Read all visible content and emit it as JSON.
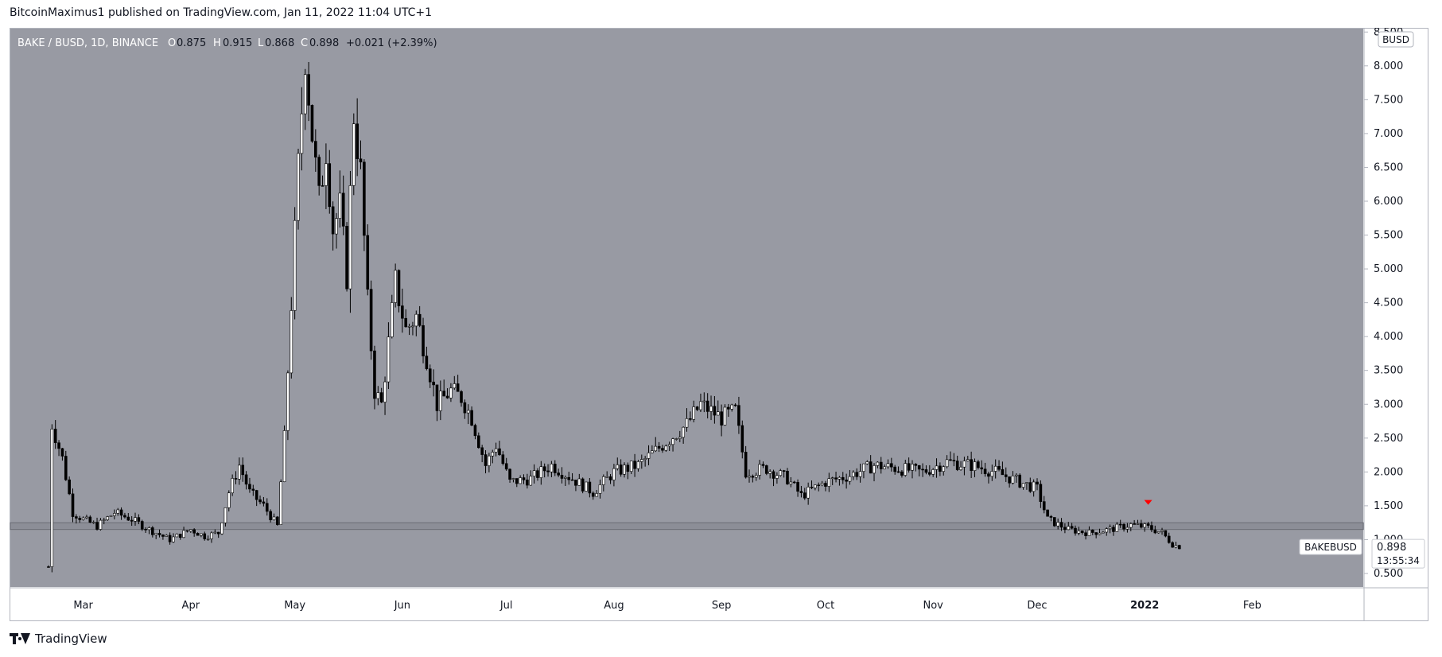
{
  "header": {
    "publisher": "BitcoinMaximus1 published on TradingView.com, Jan 11, 2022 11:04 UTC+1"
  },
  "footer": {
    "brand": "TradingView"
  },
  "chart_data": {
    "type": "candlestick",
    "symbol_line": {
      "symbol": "BAKE / BUSD, 1D, BINANCE",
      "o_label": "O",
      "o_value": "0.875",
      "h_label": "H",
      "h_value": "0.915",
      "l_label": "L",
      "l_value": "0.868",
      "c_label": "C",
      "c_value": "0.898",
      "change": "+0.021 (+2.39%)"
    },
    "currency_badge": "BUSD",
    "ylim": [
      0.3,
      8.55
    ],
    "y_ticks": [
      "8.500",
      "8.000",
      "7.500",
      "7.000",
      "6.500",
      "6.000",
      "5.500",
      "5.000",
      "4.500",
      "4.000",
      "3.500",
      "3.000",
      "2.500",
      "2.000",
      "1.500",
      "1.000",
      "0.500"
    ],
    "x_ticks": [
      {
        "label": "Mar",
        "date": "2021-03-01",
        "bold": false
      },
      {
        "label": "Apr",
        "date": "2021-04-01",
        "bold": false
      },
      {
        "label": "May",
        "date": "2021-05-01",
        "bold": false
      },
      {
        "label": "Jun",
        "date": "2021-06-01",
        "bold": false
      },
      {
        "label": "Jul",
        "date": "2021-07-01",
        "bold": false
      },
      {
        "label": "Aug",
        "date": "2021-08-01",
        "bold": false
      },
      {
        "label": "Sep",
        "date": "2021-09-01",
        "bold": false
      },
      {
        "label": "Oct",
        "date": "2021-10-01",
        "bold": false
      },
      {
        "label": "Nov",
        "date": "2021-11-01",
        "bold": false
      },
      {
        "label": "Dec",
        "date": "2021-12-01",
        "bold": false
      },
      {
        "label": "2022",
        "date": "2022-01-01",
        "bold": true
      },
      {
        "label": "Feb",
        "date": "2022-02-01",
        "bold": false
      }
    ],
    "x_range": [
      "2021-02-08",
      "2022-03-05"
    ],
    "support_zone": [
      1.15,
      1.25
    ],
    "marker": {
      "date": "2022-01-02",
      "price": 1.55,
      "color": "#ff0000"
    },
    "price_label": {
      "symbol": "BAKEBUSD",
      "price": "0.898",
      "countdown": "13:55:34"
    },
    "series": [
      {
        "date": "2021-02-19",
        "close": 0.6
      },
      {
        "date": "2021-02-20",
        "close": 2.7
      },
      {
        "date": "2021-02-23",
        "close": 2.2
      },
      {
        "date": "2021-02-26",
        "close": 1.4
      },
      {
        "date": "2021-03-01",
        "close": 1.3
      },
      {
        "date": "2021-03-05",
        "close": 1.2
      },
      {
        "date": "2021-03-10",
        "close": 1.4
      },
      {
        "date": "2021-03-15",
        "close": 1.3
      },
      {
        "date": "2021-03-20",
        "close": 1.15
      },
      {
        "date": "2021-03-26",
        "close": 1.0
      },
      {
        "date": "2021-04-01",
        "close": 1.15
      },
      {
        "date": "2021-04-05",
        "close": 1.05
      },
      {
        "date": "2021-04-09",
        "close": 1.1
      },
      {
        "date": "2021-04-12",
        "close": 1.7
      },
      {
        "date": "2021-04-15",
        "close": 2.1
      },
      {
        "date": "2021-04-18",
        "close": 1.7
      },
      {
        "date": "2021-04-22",
        "close": 1.5
      },
      {
        "date": "2021-04-26",
        "close": 1.2
      },
      {
        "date": "2021-04-28",
        "close": 2.5
      },
      {
        "date": "2021-04-30",
        "close": 4.5
      },
      {
        "date": "2021-05-02",
        "close": 6.5
      },
      {
        "date": "2021-05-04",
        "close": 8.2
      },
      {
        "date": "2021-05-06",
        "close": 7.0
      },
      {
        "date": "2021-05-08",
        "close": 6.0
      },
      {
        "date": "2021-05-10",
        "close": 6.8
      },
      {
        "date": "2021-05-12",
        "close": 5.6
      },
      {
        "date": "2021-05-14",
        "close": 5.9
      },
      {
        "date": "2021-05-16",
        "close": 4.9
      },
      {
        "date": "2021-05-18",
        "close": 7.3
      },
      {
        "date": "2021-05-20",
        "close": 6.4
      },
      {
        "date": "2021-05-22",
        "close": 4.5
      },
      {
        "date": "2021-05-24",
        "close": 3.2
      },
      {
        "date": "2021-05-26",
        "close": 3.0
      },
      {
        "date": "2021-05-28",
        "close": 3.9
      },
      {
        "date": "2021-05-30",
        "close": 4.8
      },
      {
        "date": "2021-06-02",
        "close": 4.1
      },
      {
        "date": "2021-06-05",
        "close": 4.3
      },
      {
        "date": "2021-06-08",
        "close": 3.7
      },
      {
        "date": "2021-06-11",
        "close": 3.0
      },
      {
        "date": "2021-06-15",
        "close": 3.2
      },
      {
        "date": "2021-06-18",
        "close": 3.1
      },
      {
        "date": "2021-06-21",
        "close": 2.8
      },
      {
        "date": "2021-06-25",
        "close": 2.1
      },
      {
        "date": "2021-06-28",
        "close": 2.4
      },
      {
        "date": "2021-07-02",
        "close": 1.85
      },
      {
        "date": "2021-07-08",
        "close": 1.9
      },
      {
        "date": "2021-07-14",
        "close": 2.1
      },
      {
        "date": "2021-07-20",
        "close": 1.9
      },
      {
        "date": "2021-07-26",
        "close": 1.7
      },
      {
        "date": "2021-08-01",
        "close": 2.0
      },
      {
        "date": "2021-08-08",
        "close": 2.1
      },
      {
        "date": "2021-08-15",
        "close": 2.4
      },
      {
        "date": "2021-08-22",
        "close": 2.7
      },
      {
        "date": "2021-08-26",
        "close": 3.0
      },
      {
        "date": "2021-09-01",
        "close": 2.8
      },
      {
        "date": "2021-09-05",
        "close": 2.9
      },
      {
        "date": "2021-09-08",
        "close": 2.0
      },
      {
        "date": "2021-09-14",
        "close": 2.05
      },
      {
        "date": "2021-09-20",
        "close": 1.9
      },
      {
        "date": "2021-09-24",
        "close": 1.65
      },
      {
        "date": "2021-10-01",
        "close": 1.85
      },
      {
        "date": "2021-10-08",
        "close": 1.95
      },
      {
        "date": "2021-10-15",
        "close": 2.1
      },
      {
        "date": "2021-10-22",
        "close": 2.05
      },
      {
        "date": "2021-10-29",
        "close": 2.0
      },
      {
        "date": "2021-11-05",
        "close": 2.15
      },
      {
        "date": "2021-11-12",
        "close": 2.1
      },
      {
        "date": "2021-11-19",
        "close": 2.0
      },
      {
        "date": "2021-11-26",
        "close": 1.85
      },
      {
        "date": "2021-12-01",
        "close": 1.75
      },
      {
        "date": "2021-12-04",
        "close": 1.3
      },
      {
        "date": "2021-12-10",
        "close": 1.15
      },
      {
        "date": "2021-12-16",
        "close": 1.1
      },
      {
        "date": "2021-12-22",
        "close": 1.15
      },
      {
        "date": "2021-12-28",
        "close": 1.22
      },
      {
        "date": "2022-01-02",
        "close": 1.18
      },
      {
        "date": "2022-01-06",
        "close": 1.1
      },
      {
        "date": "2022-01-09",
        "close": 0.93
      },
      {
        "date": "2022-01-11",
        "close": 0.898
      }
    ]
  }
}
